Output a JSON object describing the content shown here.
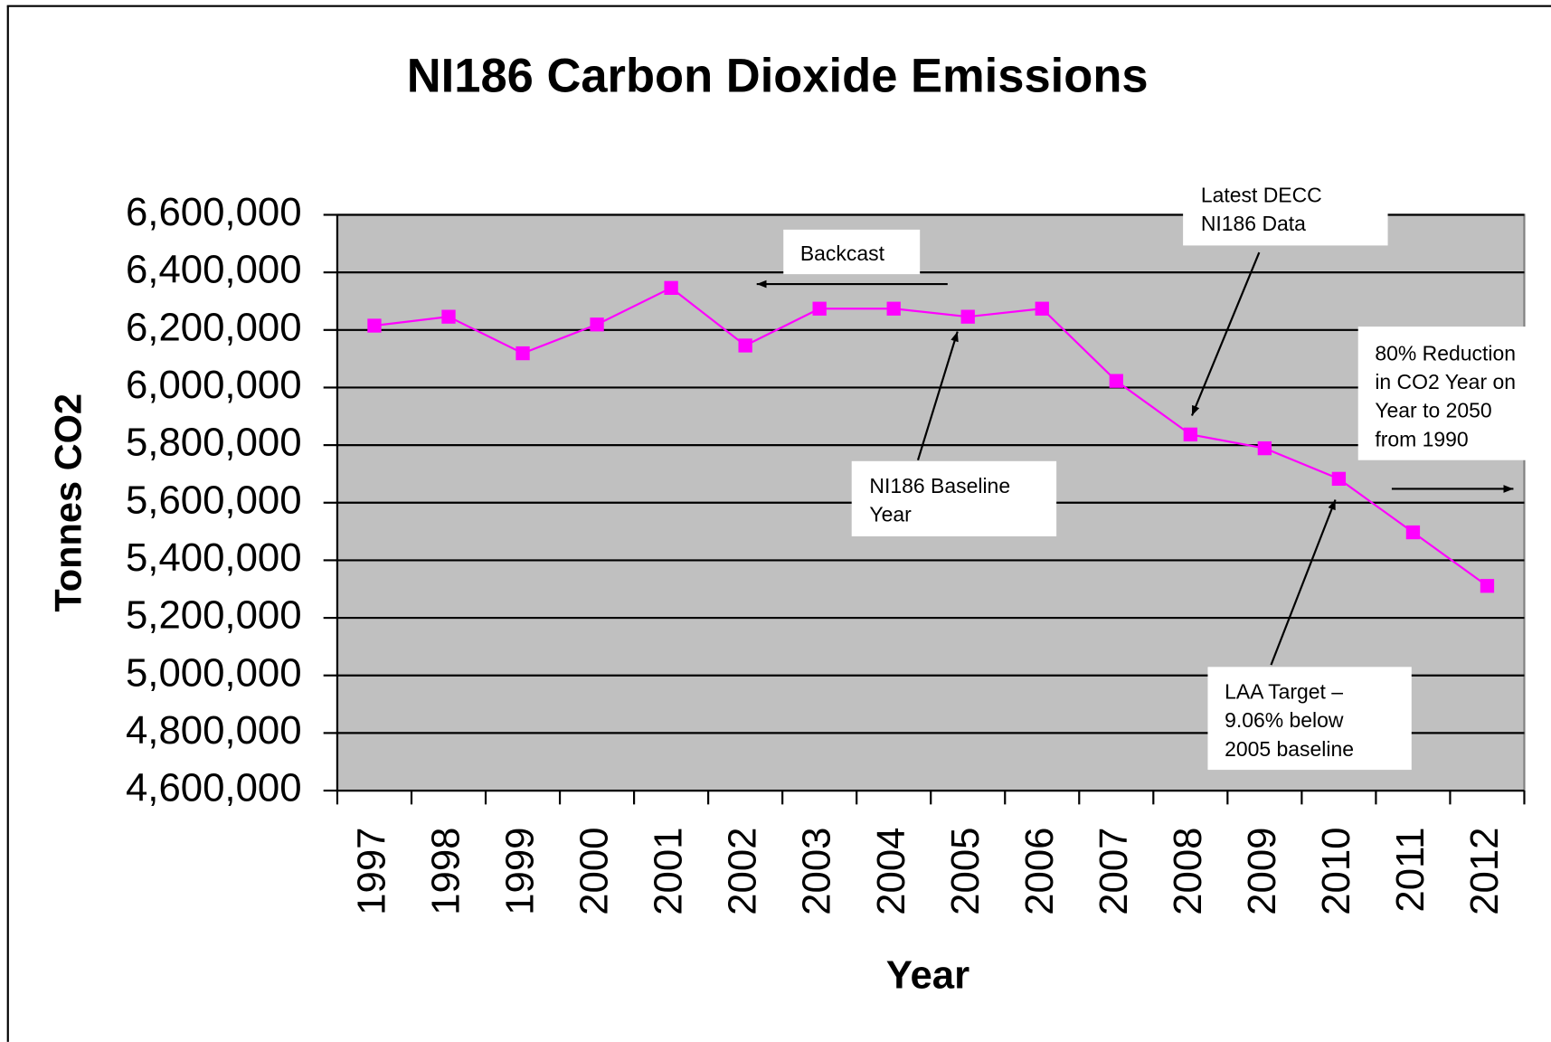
{
  "chart_data": {
    "type": "line",
    "title": "NI186 Carbon Dioxide Emissions",
    "x_label": "Year",
    "y_label": "Tonnes CO2",
    "categories": [
      "1997",
      "1998",
      "1999",
      "2000",
      "2001",
      "2002",
      "2003",
      "2004",
      "2005",
      "2006",
      "2007",
      "2008",
      "2009",
      "2010",
      "2011",
      "2012"
    ],
    "series": [
      {
        "name": "NI186 Carbon Dioxide Emissions",
        "color": "#ff00ff",
        "values": [
          6215000,
          6246000,
          6119000,
          6219000,
          6346000,
          6146000,
          6274000,
          6274000,
          6246000,
          6274000,
          6023000,
          5837000,
          5789000,
          5683000,
          5497000,
          5311000
        ]
      }
    ],
    "ylim": [
      4600000,
      6600000
    ],
    "yticks": [
      {
        "value": 4600000,
        "label": "4,600,000"
      },
      {
        "value": 4800000,
        "label": "4,800,000"
      },
      {
        "value": 5000000,
        "label": "5,000,000"
      },
      {
        "value": 5200000,
        "label": "5,200,000"
      },
      {
        "value": 5400000,
        "label": "5,400,000"
      },
      {
        "value": 5600000,
        "label": "5,600,000"
      },
      {
        "value": 5800000,
        "label": "5,800,000"
      },
      {
        "value": 6000000,
        "label": "6,000,000"
      },
      {
        "value": 6200000,
        "label": "6,200,000"
      },
      {
        "value": 6400000,
        "label": "6,400,000"
      },
      {
        "value": 6600000,
        "label": "6,600,000"
      }
    ],
    "grid": true,
    "plot_background": "#c0c0c0",
    "annotations": [
      {
        "lines": [
          "Backcast"
        ]
      },
      {
        "lines": [
          "Latest DECC",
          "NI186 Data"
        ]
      },
      {
        "lines": [
          "NI186 Baseline",
          "Year"
        ]
      },
      {
        "lines": [
          "80% Reduction",
          "in CO2 Year on",
          "Year to 2050",
          "from 1990"
        ]
      },
      {
        "lines": [
          "LAA Target –",
          "9.06% below",
          "2005 baseline"
        ]
      }
    ]
  }
}
